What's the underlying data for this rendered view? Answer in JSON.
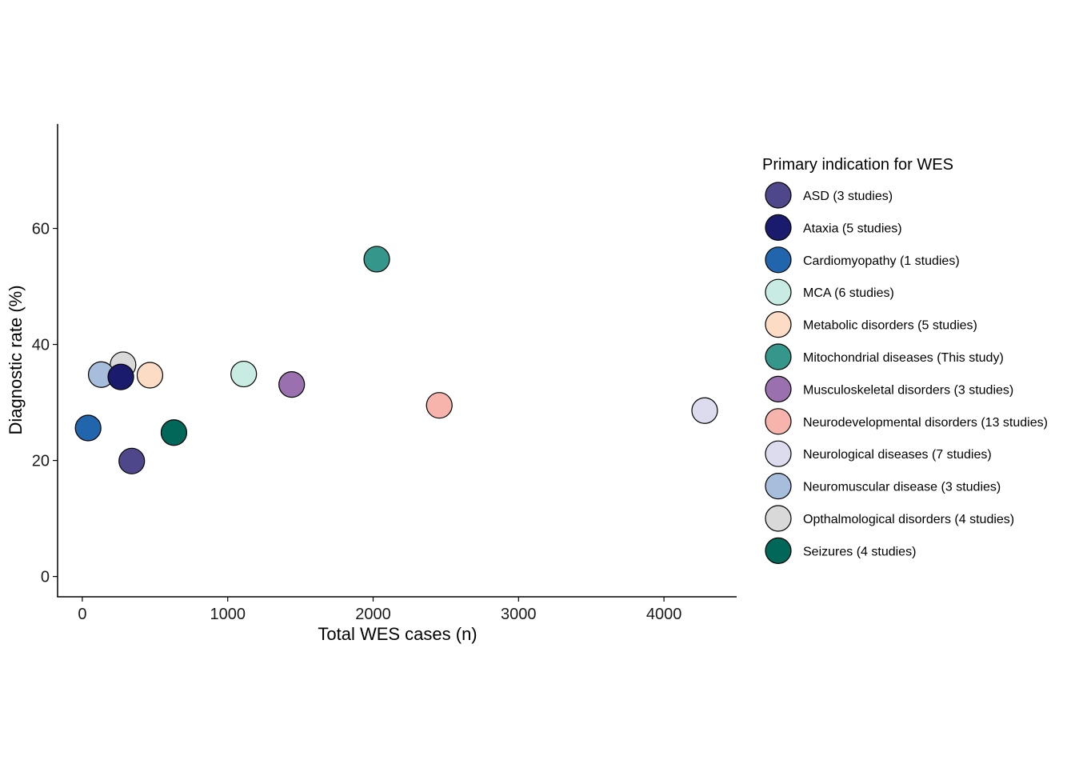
{
  "chart_data": {
    "type": "scatter",
    "title": "",
    "xlabel": "Total WES cases (n)",
    "ylabel": "Diagnostic rate (%)",
    "xlim": [
      -170,
      4500
    ],
    "ylim": [
      -3.5,
      78
    ],
    "xticks": [
      0,
      1000,
      2000,
      3000,
      4000
    ],
    "yticks": [
      0,
      20,
      40,
      60
    ],
    "grid": false,
    "legend_title": "Primary indication for WES",
    "legend_position": "right",
    "series": [
      {
        "name": "ASD (3 studies)",
        "color": "#4e4789",
        "x": 340,
        "y": 19.9
      },
      {
        "name": "Ataxia (5 studies)",
        "color": "#1b1b6e",
        "x": 265,
        "y": 34.4
      },
      {
        "name": "Cardiomyopathy (1 studies)",
        "color": "#2166ac",
        "x": 40,
        "y": 25.6
      },
      {
        "name": "MCA (6 studies)",
        "color": "#c8ebe3",
        "x": 1110,
        "y": 34.9
      },
      {
        "name": "Metabolic disorders (5 studies)",
        "color": "#fcdcc4",
        "x": 465,
        "y": 34.7
      },
      {
        "name": "Mitochondrial diseases (This study)",
        "color": "#35968c",
        "x": 2025,
        "y": 54.7
      },
      {
        "name": "Musculoskeletal disorders (3 studies)",
        "color": "#9a70ae",
        "x": 1440,
        "y": 33.1
      },
      {
        "name": "Neurodevelopmental disorders (13 studies)",
        "color": "#f7b4ad",
        "x": 2455,
        "y": 29.5
      },
      {
        "name": "Neurological diseases (7 studies)",
        "color": "#dcdcee",
        "x": 4280,
        "y": 28.6
      },
      {
        "name": "Neuromuscular disease (3 studies)",
        "color": "#a7bddc",
        "x": 130,
        "y": 34.8
      },
      {
        "name": "Opthalmological disorders (4 studies)",
        "color": "#d9d9d9",
        "x": 280,
        "y": 36.5
      },
      {
        "name": "Seizures (4 studies)",
        "color": "#016759",
        "x": 630,
        "y": 24.8
      }
    ],
    "draw_order": [
      10,
      9,
      1,
      4,
      0,
      2,
      11,
      3,
      6,
      5,
      7,
      8
    ]
  }
}
